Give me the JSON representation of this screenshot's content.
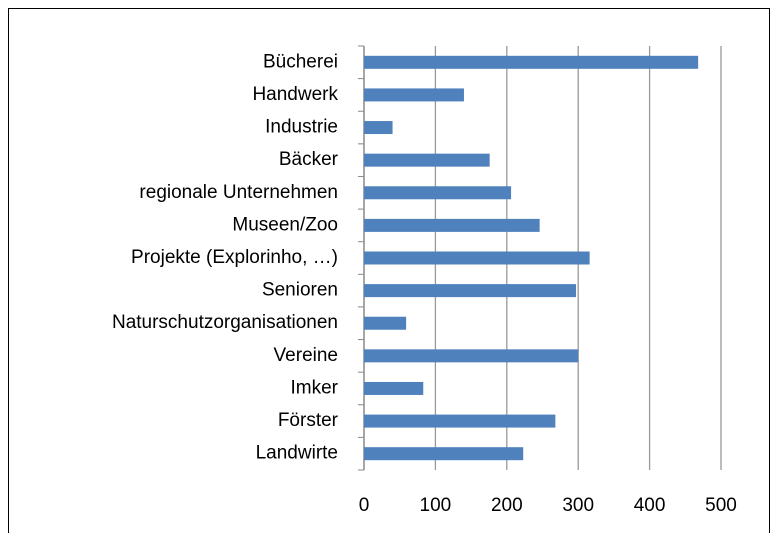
{
  "chart_data": {
    "type": "barh",
    "categories": [
      "Bücherei",
      "Handwerk",
      "Industrie",
      "Bäcker",
      "regionale Unternehmen",
      "Museen/Zoo",
      "Projekte (Explorinho, …)",
      "Senioren",
      "Naturschutzorganisationen",
      "Vereine",
      "Imker",
      "Förster",
      "Landwirte"
    ],
    "values": [
      468,
      140,
      40,
      176,
      206,
      246,
      316,
      297,
      59,
      300,
      83,
      268,
      223
    ],
    "color": "#4f81bd",
    "xlim": [
      0,
      500
    ],
    "xticks": [
      0,
      100,
      200,
      300,
      400,
      500
    ],
    "grid": true
  }
}
